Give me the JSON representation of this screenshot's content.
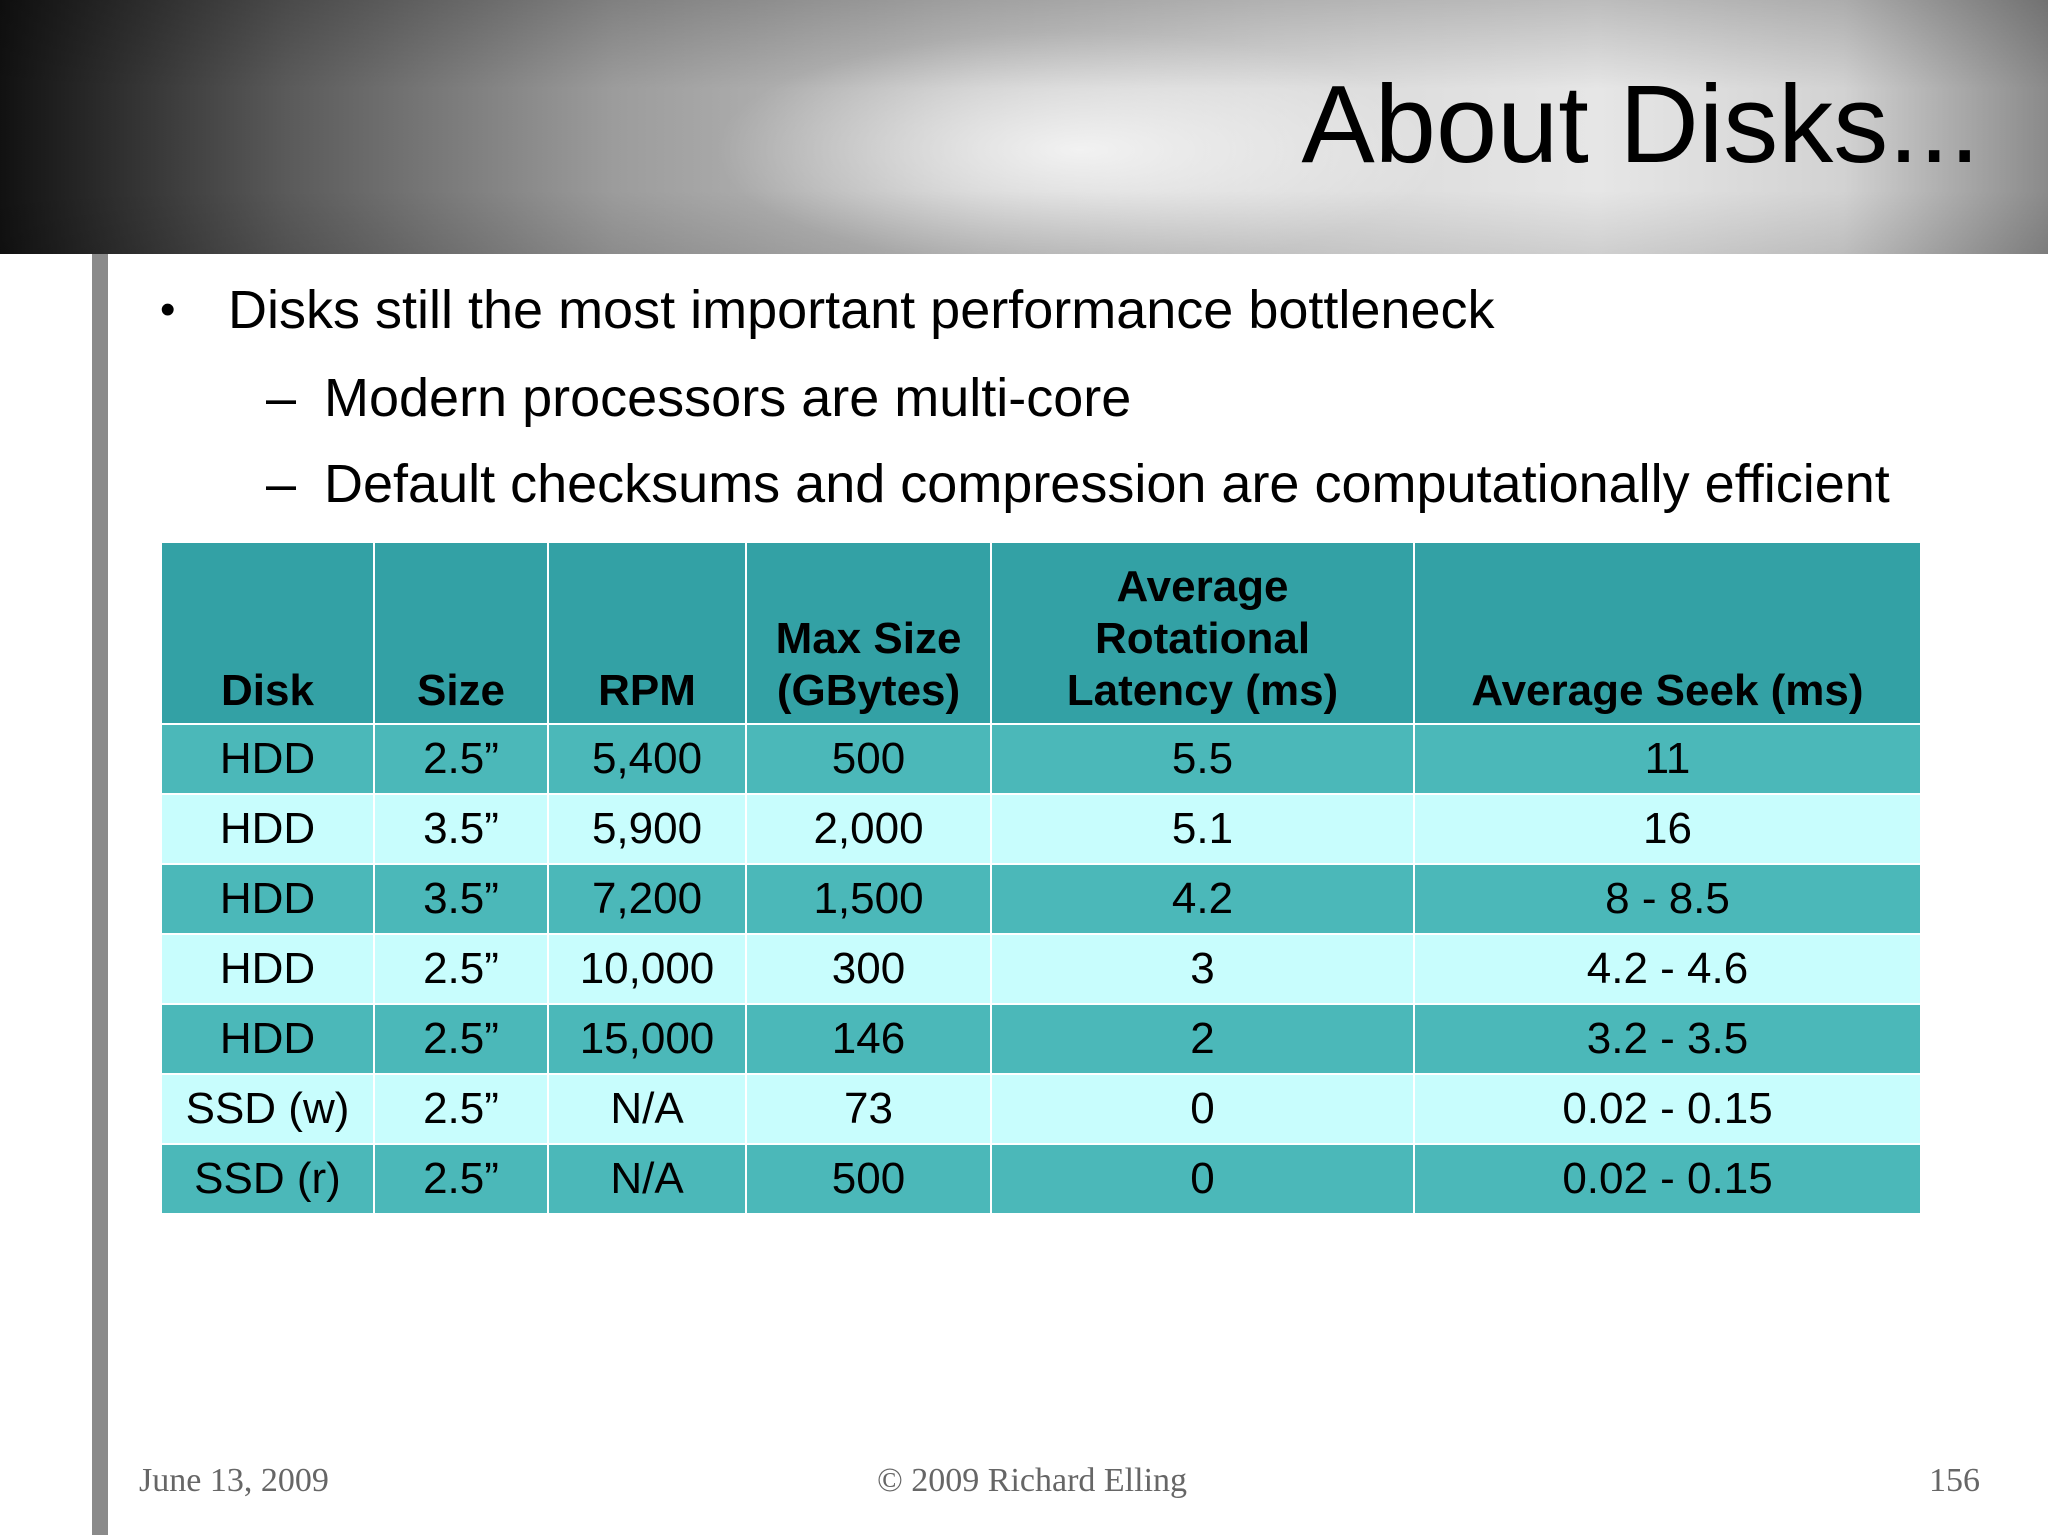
{
  "slide": {
    "title": "About Disks...",
    "bullet": {
      "mark": "•",
      "text": "Disks still the most important performance bottleneck",
      "sub": [
        {
          "mark": "–",
          "text": "Modern processors are multi-core"
        },
        {
          "mark": "–",
          "text": "Default checksums and compression are computationally efficient"
        }
      ]
    }
  },
  "table": {
    "headers": [
      "Disk",
      "Size",
      "RPM",
      "Max Size (GBytes)",
      "Average Rotational Latency (ms)",
      "Average Seek (ms)"
    ],
    "rows": [
      [
        "HDD",
        "2.5”",
        "5,400",
        "500",
        "5.5",
        "11"
      ],
      [
        "HDD",
        "3.5”",
        "5,900",
        "2,000",
        "5.1",
        "16"
      ],
      [
        "HDD",
        "3.5”",
        "7,200",
        "1,500",
        "4.2",
        "8 - 8.5"
      ],
      [
        "HDD",
        "2.5”",
        "10,000",
        "300",
        "3",
        "4.2 - 4.6"
      ],
      [
        "HDD",
        "2.5”",
        "15,000",
        "146",
        "2",
        "3.2 - 3.5"
      ],
      [
        "SSD (w)",
        "2.5”",
        "N/A",
        "73",
        "0",
        "0.02 - 0.15"
      ],
      [
        "SSD (r)",
        "2.5”",
        "N/A",
        "500",
        "0",
        "0.02 - 0.15"
      ]
    ]
  },
  "footer": {
    "date": "June 13, 2009",
    "copyright": "© 2009 Richard Elling",
    "page": "156"
  }
}
